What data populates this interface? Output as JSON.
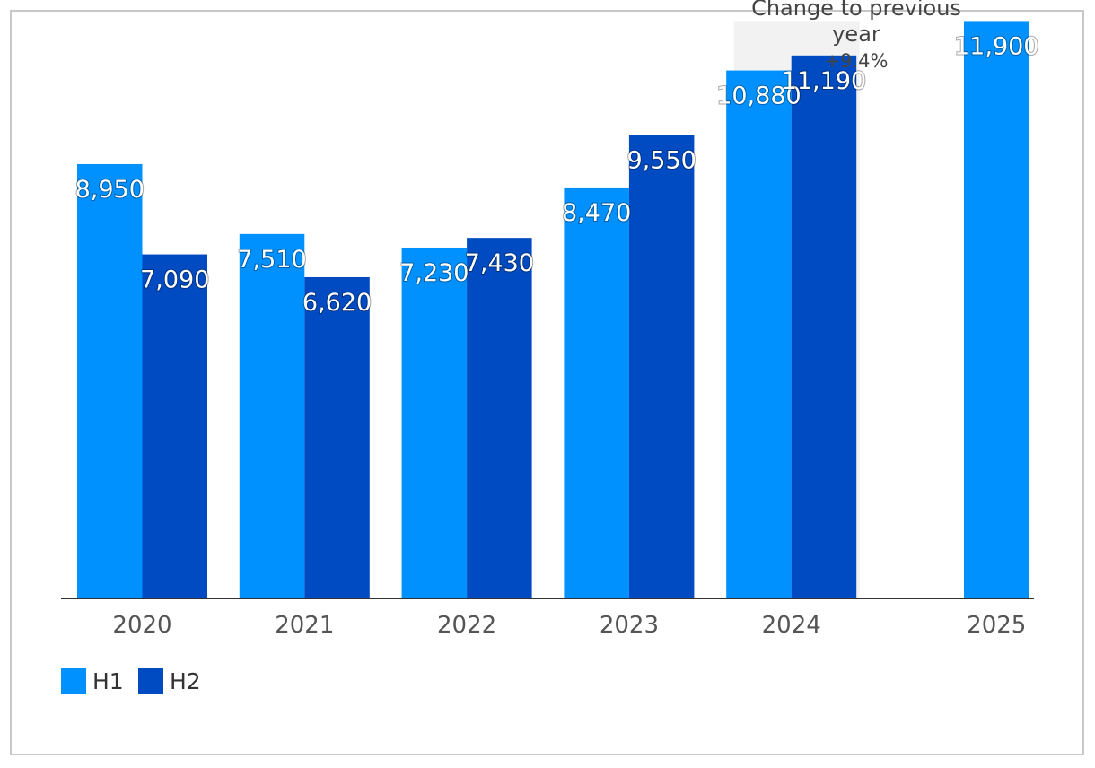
{
  "chart_data": {
    "type": "bar",
    "categories": [
      "2020",
      "2021",
      "2022",
      "2023",
      "2024",
      "2025"
    ],
    "series": [
      {
        "name": "H1",
        "color": "#0091FF",
        "values": [
          8950,
          7510,
          7230,
          8470,
          10880,
          11900
        ]
      },
      {
        "name": "H2",
        "color": "#004BC1",
        "values": [
          7090,
          6620,
          7430,
          9550,
          11190,
          null
        ]
      }
    ],
    "value_labels": {
      "H1": [
        "8,950",
        "7,510",
        "7,230",
        "8,470",
        "10,880",
        "11,900"
      ],
      "H2": [
        "7,090",
        "6,620",
        "7,430",
        "9,550",
        "11,190",
        ""
      ]
    },
    "annotation": {
      "line1": "Change to previous",
      "line2": "year",
      "value": "+9.4%"
    },
    "ylim": [
      0,
      12000
    ],
    "grid": false,
    "legend": "bottom-left",
    "title": "",
    "xlabel": "",
    "ylabel": ""
  }
}
